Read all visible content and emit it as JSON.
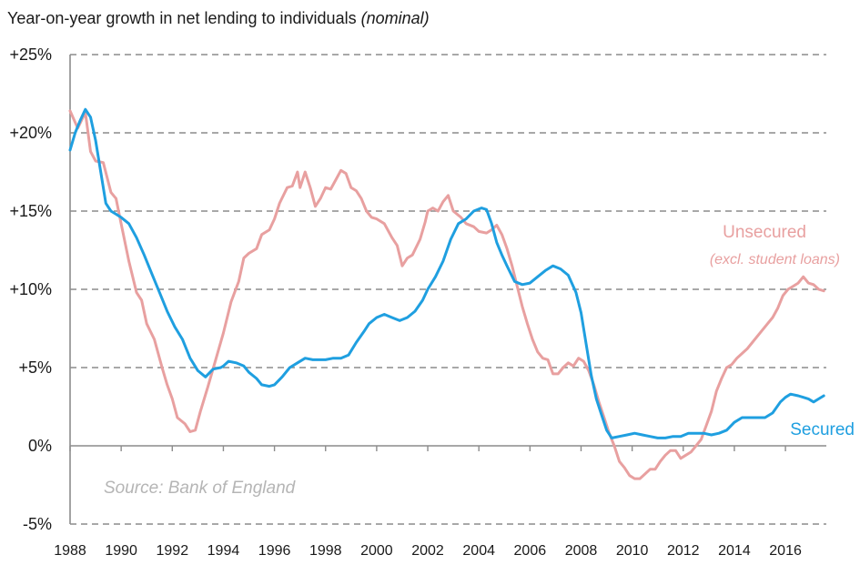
{
  "chart_data": {
    "type": "line",
    "title": "Year-on-year growth in net lending to individuals",
    "title_suffix": "(nominal)",
    "source": "Source: Bank of England",
    "xlabel": "",
    "ylabel": "",
    "xlim": [
      1988,
      2017.6
    ],
    "ylim": [
      -5,
      25
    ],
    "y_ticks": [
      25,
      20,
      15,
      10,
      5,
      0,
      -5
    ],
    "y_tick_labels": [
      "+25%",
      "+20%",
      "+15%",
      "+10%",
      "+5%",
      "0%",
      "-5%"
    ],
    "x_ticks": [
      1988,
      1990,
      1992,
      1994,
      1996,
      1998,
      2000,
      2002,
      2004,
      2006,
      2008,
      2010,
      2012,
      2014,
      2016
    ],
    "x_tick_labels": [
      "1988",
      "1990",
      "1992",
      "1994",
      "1996",
      "1998",
      "2000",
      "2002",
      "2004",
      "2006",
      "2008",
      "2010",
      "2012",
      "2014",
      "2016"
    ],
    "grid": "horizontal-dashed",
    "series": [
      {
        "name": "Unsecured",
        "name_sub": "(excl. student loans)",
        "color": "#e8a0a0",
        "points": [
          [
            1988.0,
            21.4
          ],
          [
            1988.3,
            20.3
          ],
          [
            1988.6,
            21.3
          ],
          [
            1988.8,
            18.8
          ],
          [
            1989.0,
            18.2
          ],
          [
            1989.3,
            18.1
          ],
          [
            1989.6,
            16.2
          ],
          [
            1989.8,
            15.8
          ],
          [
            1990.0,
            14.2
          ],
          [
            1990.3,
            11.8
          ],
          [
            1990.6,
            9.8
          ],
          [
            1990.8,
            9.3
          ],
          [
            1991.0,
            7.8
          ],
          [
            1991.3,
            6.8
          ],
          [
            1991.6,
            5.0
          ],
          [
            1991.8,
            3.9
          ],
          [
            1992.0,
            3.0
          ],
          [
            1992.2,
            1.8
          ],
          [
            1992.5,
            1.4
          ],
          [
            1992.7,
            0.9
          ],
          [
            1992.9,
            1.0
          ],
          [
            1993.1,
            2.2
          ],
          [
            1993.4,
            3.8
          ],
          [
            1993.7,
            5.5
          ],
          [
            1994.0,
            7.2
          ],
          [
            1994.3,
            9.2
          ],
          [
            1994.6,
            10.5
          ],
          [
            1994.8,
            12.0
          ],
          [
            1995.0,
            12.3
          ],
          [
            1995.3,
            12.6
          ],
          [
            1995.5,
            13.5
          ],
          [
            1995.8,
            13.8
          ],
          [
            1996.0,
            14.5
          ],
          [
            1996.2,
            15.5
          ],
          [
            1996.5,
            16.5
          ],
          [
            1996.7,
            16.6
          ],
          [
            1996.9,
            17.5
          ],
          [
            1997.0,
            16.5
          ],
          [
            1997.2,
            17.5
          ],
          [
            1997.4,
            16.5
          ],
          [
            1997.6,
            15.3
          ],
          [
            1997.8,
            15.8
          ],
          [
            1998.0,
            16.5
          ],
          [
            1998.2,
            16.4
          ],
          [
            1998.4,
            17.0
          ],
          [
            1998.6,
            17.6
          ],
          [
            1998.8,
            17.4
          ],
          [
            1999.0,
            16.5
          ],
          [
            1999.2,
            16.3
          ],
          [
            1999.4,
            15.8
          ],
          [
            1999.6,
            15.0
          ],
          [
            1999.8,
            14.6
          ],
          [
            2000.0,
            14.5
          ],
          [
            2000.3,
            14.2
          ],
          [
            2000.6,
            13.3
          ],
          [
            2000.8,
            12.8
          ],
          [
            2001.0,
            11.5
          ],
          [
            2001.2,
            12.0
          ],
          [
            2001.4,
            12.2
          ],
          [
            2001.7,
            13.2
          ],
          [
            2001.9,
            14.3
          ],
          [
            2002.0,
            15.0
          ],
          [
            2002.2,
            15.2
          ],
          [
            2002.4,
            15.0
          ],
          [
            2002.6,
            15.6
          ],
          [
            2002.8,
            16.0
          ],
          [
            2003.0,
            15.0
          ],
          [
            2003.3,
            14.6
          ],
          [
            2003.5,
            14.2
          ],
          [
            2003.8,
            14.0
          ],
          [
            2004.0,
            13.7
          ],
          [
            2004.3,
            13.6
          ],
          [
            2004.5,
            13.8
          ],
          [
            2004.7,
            14.1
          ],
          [
            2004.9,
            13.5
          ],
          [
            2005.1,
            12.6
          ],
          [
            2005.3,
            11.5
          ],
          [
            2005.5,
            10.2
          ],
          [
            2005.7,
            8.9
          ],
          [
            2005.9,
            7.8
          ],
          [
            2006.1,
            6.8
          ],
          [
            2006.3,
            6.0
          ],
          [
            2006.5,
            5.6
          ],
          [
            2006.7,
            5.5
          ],
          [
            2006.9,
            4.6
          ],
          [
            2007.1,
            4.6
          ],
          [
            2007.3,
            5.0
          ],
          [
            2007.5,
            5.3
          ],
          [
            2007.7,
            5.1
          ],
          [
            2007.9,
            5.6
          ],
          [
            2008.1,
            5.4
          ],
          [
            2008.3,
            4.8
          ],
          [
            2008.5,
            3.9
          ],
          [
            2008.7,
            2.8
          ],
          [
            2008.9,
            1.8
          ],
          [
            2009.1,
            0.8
          ],
          [
            2009.3,
            0.0
          ],
          [
            2009.5,
            -1.0
          ],
          [
            2009.7,
            -1.4
          ],
          [
            2009.9,
            -1.9
          ],
          [
            2010.1,
            -2.1
          ],
          [
            2010.3,
            -2.1
          ],
          [
            2010.5,
            -1.8
          ],
          [
            2010.7,
            -1.5
          ],
          [
            2010.9,
            -1.5
          ],
          [
            2011.1,
            -1.0
          ],
          [
            2011.3,
            -0.6
          ],
          [
            2011.5,
            -0.3
          ],
          [
            2011.7,
            -0.3
          ],
          [
            2011.9,
            -0.8
          ],
          [
            2012.1,
            -0.6
          ],
          [
            2012.3,
            -0.4
          ],
          [
            2012.5,
            0.0
          ],
          [
            2012.7,
            0.4
          ],
          [
            2012.9,
            1.3
          ],
          [
            2013.1,
            2.2
          ],
          [
            2013.3,
            3.5
          ],
          [
            2013.5,
            4.3
          ],
          [
            2013.7,
            5.0
          ],
          [
            2013.9,
            5.2
          ],
          [
            2014.1,
            5.6
          ],
          [
            2014.3,
            5.9
          ],
          [
            2014.5,
            6.2
          ],
          [
            2014.7,
            6.6
          ],
          [
            2014.9,
            7.0
          ],
          [
            2015.1,
            7.4
          ],
          [
            2015.3,
            7.8
          ],
          [
            2015.5,
            8.2
          ],
          [
            2015.7,
            8.8
          ],
          [
            2015.9,
            9.6
          ],
          [
            2016.1,
            10.0
          ],
          [
            2016.3,
            10.2
          ],
          [
            2016.5,
            10.4
          ],
          [
            2016.7,
            10.8
          ],
          [
            2016.9,
            10.4
          ],
          [
            2017.1,
            10.3
          ],
          [
            2017.3,
            10.0
          ],
          [
            2017.5,
            9.9
          ]
        ]
      },
      {
        "name": "Secured",
        "color": "#1f9fe0",
        "points": [
          [
            1988.0,
            18.9
          ],
          [
            1988.2,
            20.0
          ],
          [
            1988.4,
            20.8
          ],
          [
            1988.6,
            21.5
          ],
          [
            1988.8,
            21.0
          ],
          [
            1989.0,
            19.5
          ],
          [
            1989.2,
            17.5
          ],
          [
            1989.4,
            15.5
          ],
          [
            1989.6,
            15.0
          ],
          [
            1989.8,
            14.8
          ],
          [
            1990.0,
            14.6
          ],
          [
            1990.3,
            14.2
          ],
          [
            1990.6,
            13.3
          ],
          [
            1990.9,
            12.2
          ],
          [
            1991.2,
            11.0
          ],
          [
            1991.5,
            9.8
          ],
          [
            1991.8,
            8.6
          ],
          [
            1992.1,
            7.6
          ],
          [
            1992.4,
            6.8
          ],
          [
            1992.7,
            5.6
          ],
          [
            1993.0,
            4.8
          ],
          [
            1993.3,
            4.4
          ],
          [
            1993.6,
            4.9
          ],
          [
            1993.9,
            5.0
          ],
          [
            1994.0,
            5.1
          ],
          [
            1994.2,
            5.4
          ],
          [
            1994.5,
            5.3
          ],
          [
            1994.8,
            5.1
          ],
          [
            1995.0,
            4.7
          ],
          [
            1995.3,
            4.3
          ],
          [
            1995.5,
            3.9
          ],
          [
            1995.8,
            3.8
          ],
          [
            1996.0,
            3.9
          ],
          [
            1996.3,
            4.4
          ],
          [
            1996.6,
            5.0
          ],
          [
            1996.9,
            5.3
          ],
          [
            1997.2,
            5.6
          ],
          [
            1997.5,
            5.5
          ],
          [
            1997.8,
            5.5
          ],
          [
            1998.0,
            5.5
          ],
          [
            1998.3,
            5.6
          ],
          [
            1998.6,
            5.6
          ],
          [
            1998.9,
            5.8
          ],
          [
            1999.2,
            6.6
          ],
          [
            1999.5,
            7.3
          ],
          [
            1999.7,
            7.8
          ],
          [
            2000.0,
            8.2
          ],
          [
            2000.3,
            8.4
          ],
          [
            2000.6,
            8.2
          ],
          [
            2000.9,
            8.0
          ],
          [
            2001.2,
            8.2
          ],
          [
            2001.5,
            8.6
          ],
          [
            2001.8,
            9.3
          ],
          [
            2002.0,
            10.0
          ],
          [
            2002.3,
            10.8
          ],
          [
            2002.6,
            11.8
          ],
          [
            2002.9,
            13.2
          ],
          [
            2003.2,
            14.2
          ],
          [
            2003.5,
            14.5
          ],
          [
            2003.8,
            15.0
          ],
          [
            2004.1,
            15.2
          ],
          [
            2004.3,
            15.1
          ],
          [
            2004.5,
            14.2
          ],
          [
            2004.7,
            13.0
          ],
          [
            2004.9,
            12.2
          ],
          [
            2005.1,
            11.5
          ],
          [
            2005.4,
            10.5
          ],
          [
            2005.7,
            10.3
          ],
          [
            2006.0,
            10.4
          ],
          [
            2006.3,
            10.8
          ],
          [
            2006.6,
            11.2
          ],
          [
            2006.9,
            11.5
          ],
          [
            2007.2,
            11.3
          ],
          [
            2007.5,
            10.9
          ],
          [
            2007.8,
            9.8
          ],
          [
            2008.0,
            8.5
          ],
          [
            2008.2,
            6.5
          ],
          [
            2008.4,
            4.5
          ],
          [
            2008.6,
            3.0
          ],
          [
            2008.8,
            2.0
          ],
          [
            2009.0,
            1.0
          ],
          [
            2009.2,
            0.5
          ],
          [
            2009.5,
            0.6
          ],
          [
            2009.8,
            0.7
          ],
          [
            2010.1,
            0.8
          ],
          [
            2010.4,
            0.7
          ],
          [
            2010.7,
            0.6
          ],
          [
            2011.0,
            0.5
          ],
          [
            2011.3,
            0.5
          ],
          [
            2011.6,
            0.6
          ],
          [
            2011.9,
            0.6
          ],
          [
            2012.2,
            0.8
          ],
          [
            2012.5,
            0.8
          ],
          [
            2012.8,
            0.8
          ],
          [
            2013.1,
            0.7
          ],
          [
            2013.4,
            0.8
          ],
          [
            2013.7,
            1.0
          ],
          [
            2014.0,
            1.5
          ],
          [
            2014.3,
            1.8
          ],
          [
            2014.6,
            1.8
          ],
          [
            2014.9,
            1.8
          ],
          [
            2015.2,
            1.8
          ],
          [
            2015.5,
            2.1
          ],
          [
            2015.8,
            2.8
          ],
          [
            2016.0,
            3.1
          ],
          [
            2016.2,
            3.3
          ],
          [
            2016.5,
            3.2
          ],
          [
            2016.7,
            3.1
          ],
          [
            2016.9,
            3.0
          ],
          [
            2017.1,
            2.8
          ],
          [
            2017.3,
            3.0
          ],
          [
            2017.5,
            3.2
          ]
        ]
      }
    ]
  }
}
